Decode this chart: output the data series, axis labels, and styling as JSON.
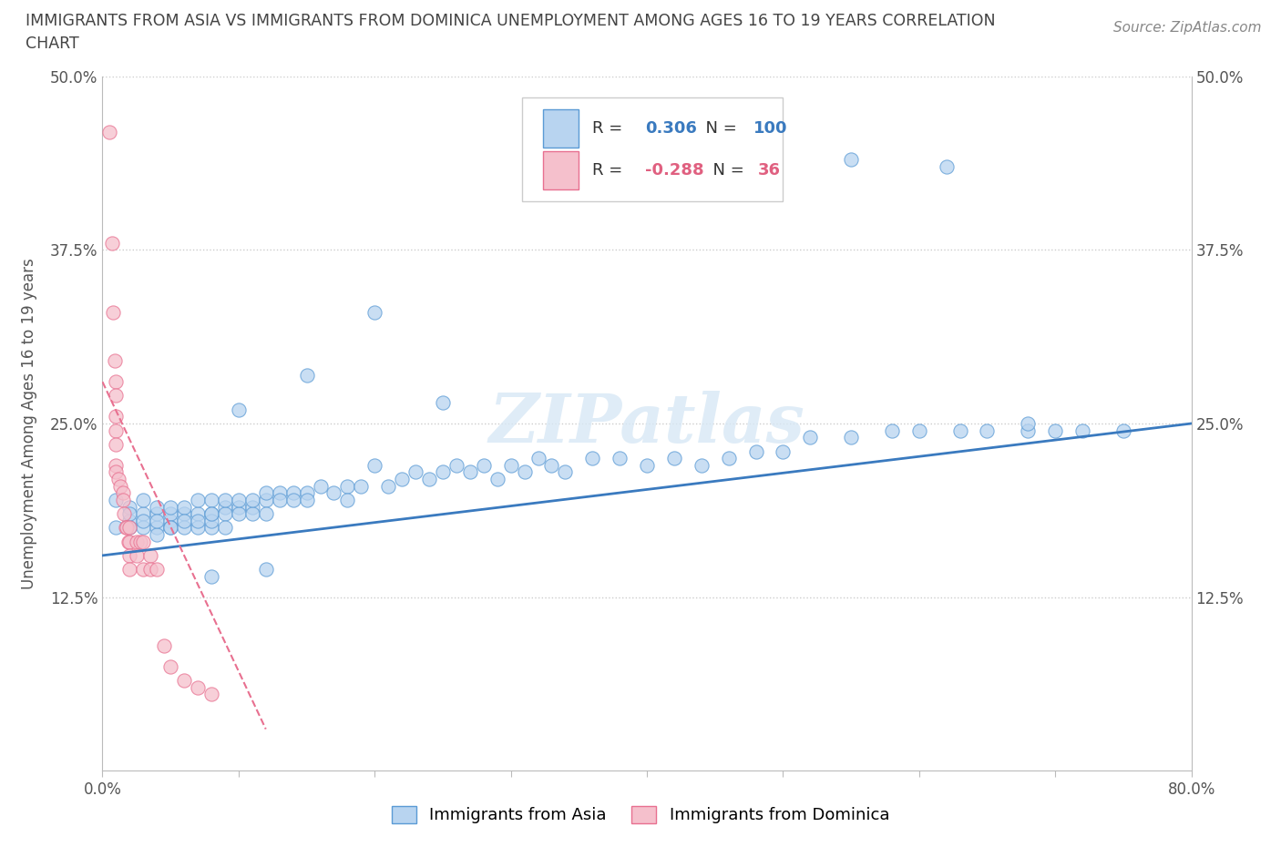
{
  "title_line1": "IMMIGRANTS FROM ASIA VS IMMIGRANTS FROM DOMINICA UNEMPLOYMENT AMONG AGES 16 TO 19 YEARS CORRELATION",
  "title_line2": "CHART",
  "source_text": "Source: ZipAtlas.com",
  "ylabel": "Unemployment Among Ages 16 to 19 years",
  "xlim": [
    0.0,
    0.8
  ],
  "ylim": [
    0.0,
    0.5
  ],
  "legend_R_asia": "0.306",
  "legend_N_asia": "100",
  "legend_R_dominica": "-0.288",
  "legend_N_dominica": "36",
  "asia_fill_color": "#b8d4f0",
  "asia_edge_color": "#5b9bd5",
  "dominica_fill_color": "#f5c0cc",
  "dominica_edge_color": "#e87090",
  "asia_line_color": "#3a7abf",
  "dominica_line_color": "#e06080",
  "watermark": "ZIPatlas",
  "asia_x": [
    0.01,
    0.01,
    0.02,
    0.02,
    0.02,
    0.02,
    0.03,
    0.03,
    0.03,
    0.03,
    0.04,
    0.04,
    0.04,
    0.04,
    0.04,
    0.05,
    0.05,
    0.05,
    0.05,
    0.05,
    0.06,
    0.06,
    0.06,
    0.06,
    0.07,
    0.07,
    0.07,
    0.07,
    0.08,
    0.08,
    0.08,
    0.08,
    0.08,
    0.09,
    0.09,
    0.09,
    0.09,
    0.1,
    0.1,
    0.1,
    0.11,
    0.11,
    0.11,
    0.12,
    0.12,
    0.12,
    0.13,
    0.13,
    0.14,
    0.14,
    0.15,
    0.15,
    0.16,
    0.17,
    0.18,
    0.18,
    0.19,
    0.2,
    0.21,
    0.22,
    0.23,
    0.24,
    0.25,
    0.26,
    0.27,
    0.28,
    0.29,
    0.3,
    0.31,
    0.32,
    0.33,
    0.34,
    0.36,
    0.38,
    0.4,
    0.42,
    0.44,
    0.46,
    0.48,
    0.5,
    0.52,
    0.55,
    0.58,
    0.6,
    0.63,
    0.65,
    0.68,
    0.7,
    0.72,
    0.75,
    0.47,
    0.55,
    0.62,
    0.68,
    0.15,
    0.2,
    0.25,
    0.1,
    0.08,
    0.12
  ],
  "asia_y": [
    0.175,
    0.195,
    0.18,
    0.19,
    0.175,
    0.185,
    0.185,
    0.175,
    0.195,
    0.18,
    0.175,
    0.185,
    0.17,
    0.19,
    0.18,
    0.18,
    0.175,
    0.185,
    0.175,
    0.19,
    0.185,
    0.175,
    0.19,
    0.18,
    0.185,
    0.175,
    0.195,
    0.18,
    0.185,
    0.175,
    0.195,
    0.18,
    0.185,
    0.19,
    0.185,
    0.175,
    0.195,
    0.19,
    0.185,
    0.195,
    0.19,
    0.185,
    0.195,
    0.195,
    0.185,
    0.2,
    0.2,
    0.195,
    0.2,
    0.195,
    0.2,
    0.195,
    0.205,
    0.2,
    0.205,
    0.195,
    0.205,
    0.22,
    0.205,
    0.21,
    0.215,
    0.21,
    0.215,
    0.22,
    0.215,
    0.22,
    0.21,
    0.22,
    0.215,
    0.225,
    0.22,
    0.215,
    0.225,
    0.225,
    0.22,
    0.225,
    0.22,
    0.225,
    0.23,
    0.23,
    0.24,
    0.24,
    0.245,
    0.245,
    0.245,
    0.245,
    0.245,
    0.245,
    0.245,
    0.245,
    0.435,
    0.44,
    0.435,
    0.25,
    0.285,
    0.33,
    0.265,
    0.26,
    0.14,
    0.145
  ],
  "dominica_x": [
    0.005,
    0.007,
    0.008,
    0.009,
    0.01,
    0.01,
    0.01,
    0.01,
    0.01,
    0.01,
    0.01,
    0.012,
    0.013,
    0.015,
    0.015,
    0.016,
    0.017,
    0.018,
    0.019,
    0.02,
    0.02,
    0.02,
    0.02,
    0.025,
    0.025,
    0.028,
    0.03,
    0.03,
    0.035,
    0.035,
    0.04,
    0.045,
    0.05,
    0.06,
    0.07,
    0.08
  ],
  "dominica_y": [
    0.46,
    0.38,
    0.33,
    0.295,
    0.28,
    0.27,
    0.255,
    0.245,
    0.235,
    0.22,
    0.215,
    0.21,
    0.205,
    0.2,
    0.195,
    0.185,
    0.175,
    0.175,
    0.165,
    0.175,
    0.165,
    0.155,
    0.145,
    0.165,
    0.155,
    0.165,
    0.165,
    0.145,
    0.155,
    0.145,
    0.145,
    0.09,
    0.075,
    0.065,
    0.06,
    0.055
  ],
  "asia_trend_x": [
    0.0,
    0.8
  ],
  "asia_trend_y": [
    0.155,
    0.25
  ],
  "dominica_trend_x": [
    0.0,
    0.12
  ],
  "dominica_trend_y": [
    0.28,
    0.03
  ]
}
